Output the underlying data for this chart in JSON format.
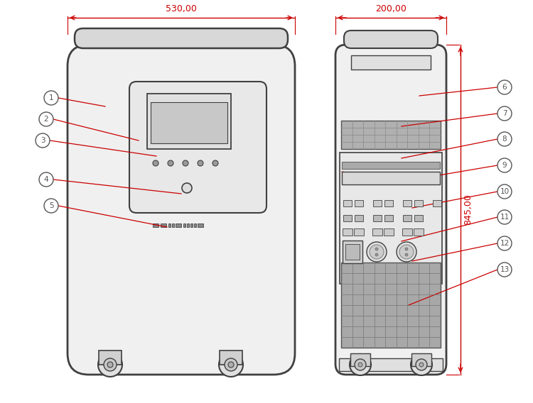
{
  "bg_color": "#ffffff",
  "line_color": "#404040",
  "red_color": "#cc0000",
  "callout_color": "#555555",
  "dim_530": "530,00",
  "dim_200": "200,00",
  "dim_845": "845,00"
}
